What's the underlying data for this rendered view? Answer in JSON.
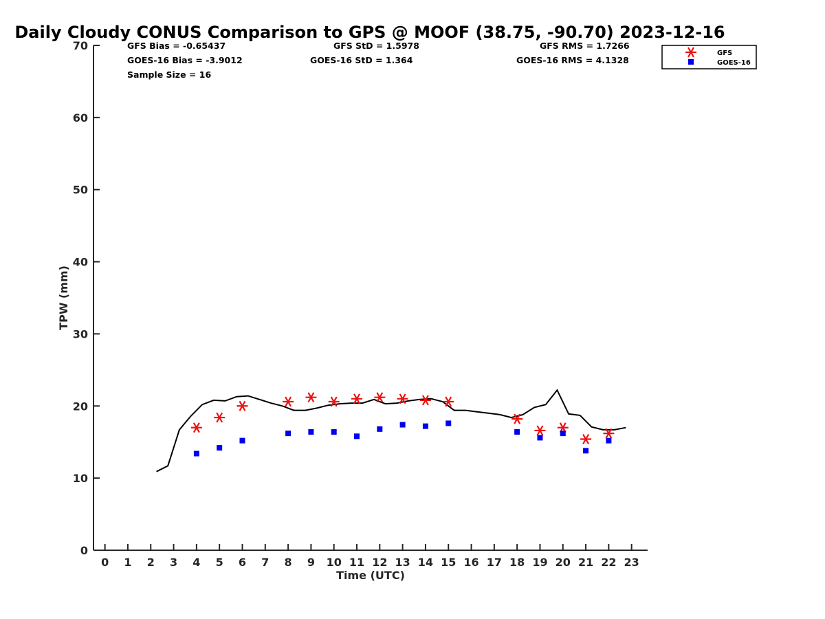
{
  "chart_data": {
    "type": "scatter",
    "title": "Daily Cloudy CONUS Comparison to GPS @ MOOF (38.75, -90.70) 2023-12-16",
    "xlabel": "Time (UTC)",
    "ylabel": "TPW (mm)",
    "xlim": [
      -0.5,
      23.7
    ],
    "ylim": [
      0,
      70
    ],
    "x_ticks": [
      0,
      1,
      2,
      3,
      4,
      5,
      6,
      7,
      8,
      9,
      10,
      11,
      12,
      13,
      14,
      15,
      16,
      17,
      18,
      19,
      20,
      21,
      22,
      23
    ],
    "y_ticks": [
      0,
      10,
      20,
      30,
      40,
      50,
      60,
      70
    ],
    "stats": [
      {
        "key": "gfs-bias",
        "text": "GFS Bias = -0.65437"
      },
      {
        "key": "gfs-std",
        "text": "GFS StD = 1.5978"
      },
      {
        "key": "gfs-rms",
        "text": "GFS RMS = 1.7266"
      },
      {
        "key": "goes-bias",
        "text": "GOES-16 Bias = -3.9012"
      },
      {
        "key": "goes-std",
        "text": "GOES-16 StD = 1.364"
      },
      {
        "key": "goes-rms",
        "text": "GOES-16 RMS = 4.1328"
      },
      {
        "key": "sample-size",
        "text": "Sample Size = 16"
      }
    ],
    "legend": {
      "position": "top-right",
      "entries": [
        "GFS",
        "GOES-16"
      ]
    },
    "series": [
      {
        "name": "GPS",
        "style": "line",
        "color": "#000000",
        "x": [
          2.25,
          2.75,
          3.25,
          3.75,
          4.25,
          4.75,
          5.25,
          5.75,
          6.25,
          6.75,
          7.25,
          7.75,
          8.25,
          8.75,
          9.25,
          9.75,
          10.25,
          10.75,
          11.25,
          11.75,
          12.25,
          12.75,
          13.25,
          13.75,
          14.25,
          14.75,
          15.25,
          15.75,
          16.25,
          16.75,
          17.25,
          17.75,
          18.25,
          18.75,
          19.25,
          19.75,
          20.25,
          20.75,
          21.25,
          21.75,
          22.25,
          22.75
        ],
        "y": [
          10.9,
          11.7,
          16.7,
          18.6,
          20.2,
          20.8,
          20.7,
          21.3,
          21.4,
          20.9,
          20.4,
          20.0,
          19.4,
          19.4,
          19.7,
          20.1,
          20.3,
          20.4,
          20.4,
          20.9,
          20.3,
          20.4,
          20.7,
          20.9,
          21.0,
          20.6,
          19.4,
          19.4,
          19.2,
          19.0,
          18.8,
          18.4,
          18.8,
          19.8,
          20.2,
          22.2,
          18.9,
          18.7,
          17.1,
          16.7,
          16.7,
          17.0
        ]
      },
      {
        "name": "GFS",
        "style": "asterisk",
        "color": "#ee1111",
        "x": [
          4,
          5,
          6,
          8,
          9,
          10,
          11,
          12,
          13,
          14,
          15,
          18,
          19,
          20,
          21,
          22
        ],
        "y": [
          17.0,
          18.4,
          20.0,
          20.6,
          21.2,
          20.6,
          21.0,
          21.2,
          21.0,
          20.8,
          20.6,
          18.2,
          16.6,
          17.0,
          15.4,
          16.2
        ]
      },
      {
        "name": "GOES-16",
        "style": "square",
        "color": "#0000ee",
        "x": [
          4,
          5,
          6,
          8,
          9,
          10,
          11,
          12,
          13,
          14,
          15,
          18,
          19,
          20,
          21,
          22
        ],
        "y": [
          13.4,
          14.2,
          15.2,
          16.2,
          16.4,
          16.4,
          15.8,
          16.8,
          17.4,
          17.2,
          17.6,
          16.4,
          15.6,
          16.2,
          13.8,
          15.2
        ]
      }
    ]
  }
}
